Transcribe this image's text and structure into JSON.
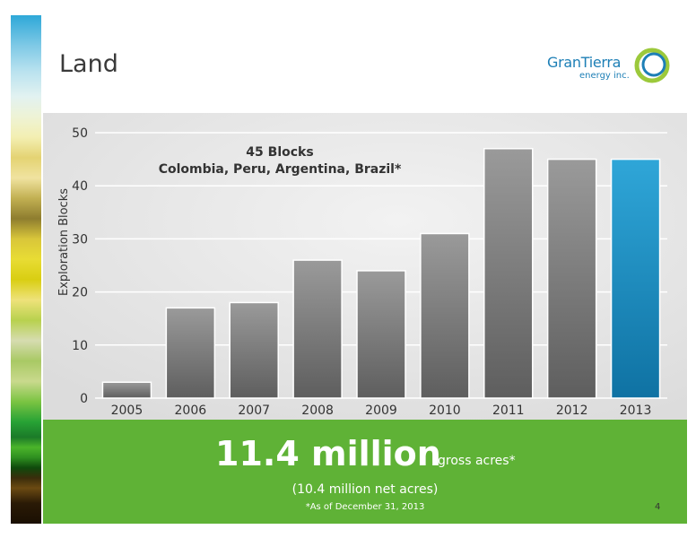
{
  "slide": {
    "title": "Land",
    "page_number": "4"
  },
  "logo": {
    "name": "GranTierra",
    "sub": "energy inc."
  },
  "banner": {
    "big_value": "11.4 million",
    "big_unit": "gross acres*",
    "net_acres": "(10.4 million net acres)",
    "footnote": "*As of December 31, 2013"
  },
  "colors": {
    "bar_gray": "#7a7a7a",
    "bar_highlight": "#1a8cc0",
    "banner_green": "#5fb236",
    "panel_bg": "#e4e4e4"
  },
  "chart_data": {
    "type": "bar",
    "annotation_line1": "45 Blocks",
    "annotation_line2": "Colombia, Peru, Argentina, Brazil*",
    "ylabel": "Exploration Blocks",
    "ylim": [
      0,
      50
    ],
    "yticks": [
      0,
      10,
      20,
      30,
      40,
      50
    ],
    "grid": true,
    "categories": [
      "2005",
      "2006",
      "2007",
      "2008",
      "2009",
      "2010",
      "2011",
      "2012",
      "2013"
    ],
    "values": [
      3,
      17,
      18,
      26,
      24,
      31,
      47,
      45,
      45
    ],
    "highlight_index": 8
  }
}
